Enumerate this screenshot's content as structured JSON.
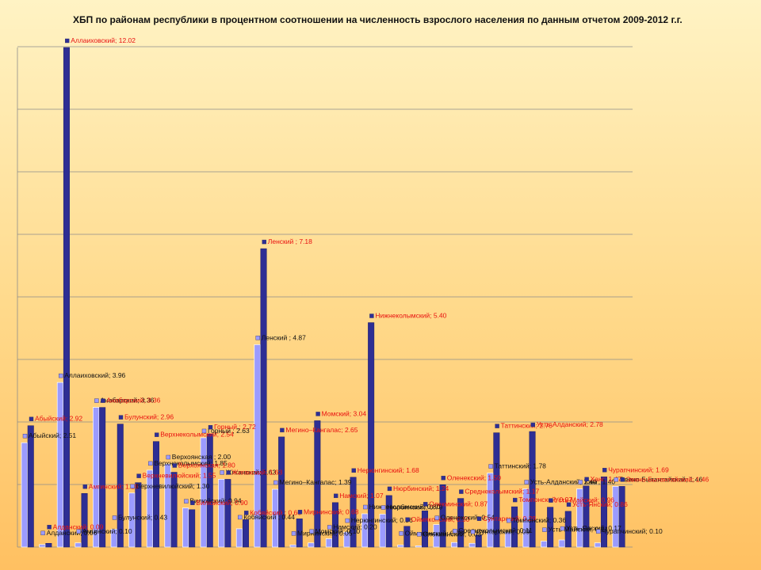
{
  "chart_data": {
    "type": "bar",
    "title": "ХБП  по районам республики в процентном соотношении на численность взрослого населения по данным отчетом 2009-2012 г.г.",
    "ylim": [
      0,
      12.02
    ],
    "grid": true,
    "colors": {
      "light": "#9b9bff",
      "dark": "#2e2e94",
      "gridline": "#8c8c8c",
      "label_light": "#111111",
      "label_dark": "#e81010"
    },
    "series": [
      {
        "name": "light"
      },
      {
        "name": "dark"
      }
    ],
    "categories": [
      "Абыйский",
      "Алданский",
      "Аллаиховский",
      "Амгинский",
      "Анабарский",
      "Булунский",
      "Верхневилюйский",
      "Верхнеколымский",
      "Верхоянская",
      "Вилюйский",
      "Горный",
      "Жиганский",
      "Кобяйский",
      "Ленский",
      "Мегино-Кангалас",
      "Мирнинский",
      "Момский",
      "Намский",
      "Нерюнгинский",
      "Нижнеколымский",
      "Нюрбинский",
      "Оймяконский",
      "Олекминский",
      "Оленекский",
      "Среднеколымский",
      "Сунтарский",
      "Таттинский",
      "Томпонский",
      "Усть-Алданский",
      "Усть-Майский",
      "Усть-Янский",
      "Ханг",
      "Чурапчинский",
      "Эвено-Бытантайский"
    ],
    "values_light": [
      2.51,
      0.06,
      3.96,
      0.1,
      3.36,
      0.43,
      1.3,
      1.85,
      2.0,
      0.94,
      2.63,
      1.63,
      0.44,
      4.87,
      1.39,
      0.05,
      0.1,
      0.2,
      0.36,
      0.8,
      0.79,
      0.05,
      0.03,
      0.54,
      0.11,
      0.09,
      1.78,
      0.36,
      1.4,
      0.14,
      0.17,
      1.4,
      0.1,
      1.46
    ],
    "values_dark": [
      2.92,
      0.09,
      12.02,
      1.29,
      3.36,
      2.96,
      1.55,
      2.54,
      1.8,
      0.9,
      2.72,
      1.63,
      0.66,
      7.18,
      2.65,
      0.68,
      3.04,
      1.07,
      1.68,
      5.4,
      1.24,
      0.5,
      0.87,
      1.5,
      1.17,
      0.29,
      2.75,
      0.97,
      2.78,
      0.96,
      0.86,
      1.47,
      1.69,
      1.46
    ],
    "data_labels_light": [
      "Абыйский; 2.51",
      "Алданский; 0.06",
      "Аллаиховский; 3.96",
      "Амгинский; 0.10",
      "Анабарский; 3.36",
      "Булунский; 0.43",
      "Верхневилюйский; 1.30",
      "Верхнеколымский; 1.85",
      "Верхоянская ; 2.00",
      "Вилюйский; 0.94",
      "Горный ; 2.63",
      "Жиганский; 1.63",
      "Кобяйский ; 0.44",
      "Ленский ; 4.87",
      "Мегино–Кангалас; 1.39",
      "Мирнинский; 0.05",
      "Момский; 0.10",
      "Намский; 0.20",
      "Нерюнгинский; 0.36",
      "Нижнеколымский; 0.80",
      "Нюрбинский; 0.79",
      "Оймяконский; 0.05",
      "Олекминский; 0.03",
      "Оленекский; 0.54",
      "Среднеколымский; 0.11",
      "Сунтарский; 0.09",
      "Таттинский; 1.78",
      "Томпонский; 0.36",
      "Усть-Алданский; 1.40",
      "Усть-Майский; 0.14",
      "Усть-Янский; 0.17",
      "Ханг; 1.40",
      "Чурапчинский; 0.10",
      "Эвено-Бытантайский; 1.46"
    ],
    "data_labels_dark": [
      "Абыйский; 2.92",
      "Алданский; 0.09",
      "Аллаиховский; 12.02",
      "Амгинский; 1.29",
      "Анабарский; 3.36",
      "Булунский; 2.96",
      "Верхневилюйский; 1.55",
      "Верхнеколымский; 2.54",
      "Верхоянская; 1.80",
      "Вилюйский; 0.90",
      "Горный ; 2.72",
      "Жиганский; 1.63",
      "Кобяйский ; 0.66",
      "Ленский ; 7.18",
      "Мегино–Кангалас; 2.65",
      "Мирнинский; 0.68",
      "Момский; 3.04",
      "Намский; 1.07",
      "Нерюнгинский; 1.68",
      "Нижнеколымский; 5.40",
      "Нюрбинский; 1.24",
      "Оймяконский; 0.50",
      "Олекминский; 0.87",
      "Оленекский; 1.50",
      "Среднеколымский; 1.17",
      "Сунтарский; 0.29",
      "Таттинский; 2.75",
      "Томпонский; 0.97",
      "Усть-Алданский; 2.78",
      "Усть-Майский; 0.96",
      "Усть-Янский; 0.86",
      "Ханг; 1.47",
      "Чурапчинский; 1.69",
      "Эвено-Бытантайский; 1.46"
    ]
  }
}
